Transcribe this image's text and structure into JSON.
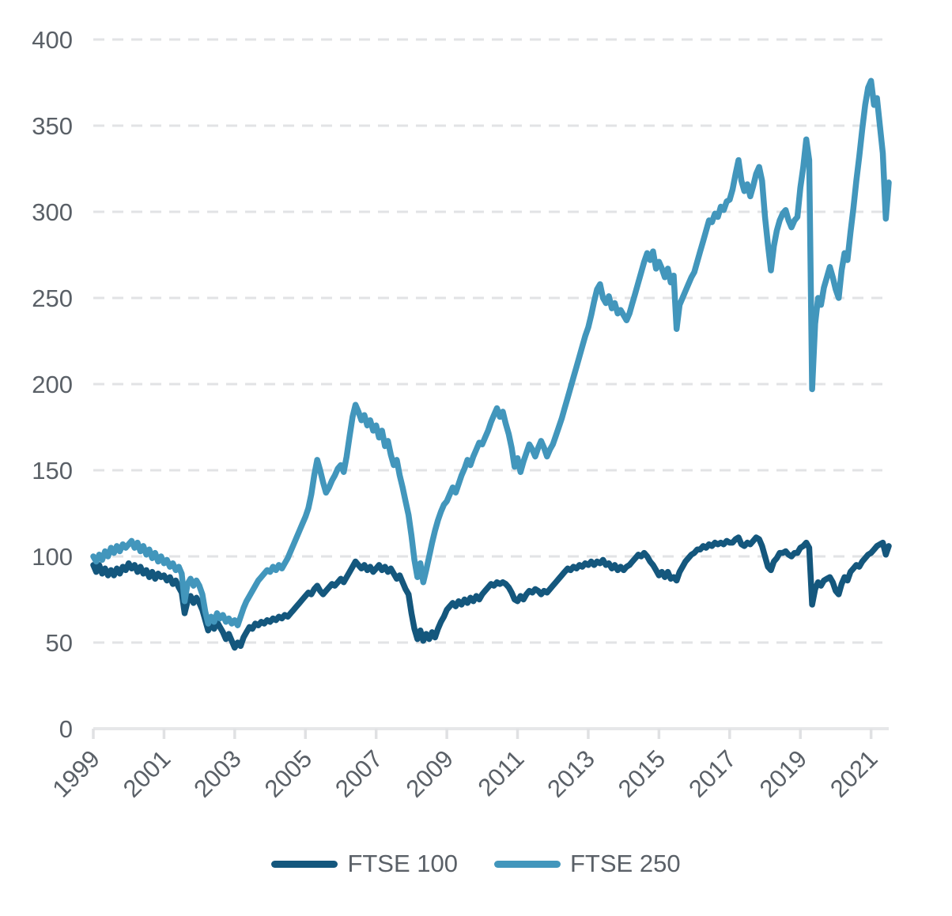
{
  "chart_data": {
    "type": "line",
    "title": "",
    "xlabel": "",
    "ylabel": "",
    "x0": 1999.0,
    "dx": 0.0833333,
    "xlim": [
      1999.0,
      2021.5
    ],
    "ylim": [
      0,
      400
    ],
    "yticks": [
      0,
      50,
      100,
      150,
      200,
      250,
      300,
      350,
      400
    ],
    "xticks": [
      1999,
      2001,
      2003,
      2005,
      2007,
      2009,
      2011,
      2013,
      2015,
      2017,
      2019,
      2021
    ],
    "grid": "horizontal-dashed",
    "legend_position": "bottom-center",
    "series": [
      {
        "name": "FTSE 100",
        "color": "#14577D",
        "values": [
          95,
          91,
          95,
          90,
          93,
          89,
          92,
          89,
          93,
          90,
          94,
          92,
          96,
          93,
          95,
          91,
          94,
          90,
          92,
          88,
          91,
          87,
          90,
          88,
          89,
          86,
          88,
          84,
          86,
          82,
          79,
          67,
          74,
          77,
          73,
          76,
          73,
          69,
          63,
          57,
          61,
          58,
          62,
          59,
          56,
          52,
          55,
          51,
          47,
          50,
          48,
          53,
          56,
          59,
          58,
          61,
          60,
          62,
          61,
          63,
          62,
          64,
          63,
          65,
          64,
          66,
          65,
          67,
          69,
          71,
          73,
          75,
          77,
          79,
          78,
          81,
          83,
          80,
          78,
          80,
          82,
          84,
          83,
          85,
          87,
          85,
          88,
          91,
          94,
          97,
          95,
          93,
          95,
          92,
          94,
          91,
          93,
          95,
          92,
          94,
          91,
          93,
          90,
          87,
          89,
          85,
          81,
          78,
          67,
          58,
          52,
          57,
          51,
          55,
          52,
          56,
          53,
          58,
          62,
          65,
          69,
          71,
          73,
          71,
          74,
          72,
          75,
          73,
          76,
          74,
          77,
          75,
          78,
          80,
          82,
          84,
          83,
          85,
          84,
          85,
          84,
          82,
          79,
          75,
          74,
          77,
          75,
          78,
          80,
          79,
          81,
          80,
          78,
          80,
          79,
          81,
          83,
          85,
          87,
          89,
          91,
          93,
          92,
          94,
          93,
          95,
          94,
          96,
          95,
          97,
          95,
          97,
          96,
          98,
          95,
          96,
          93,
          95,
          92,
          94,
          92,
          94,
          95,
          97,
          99,
          101,
          100,
          102,
          100,
          97,
          95,
          92,
          89,
          91,
          88,
          91,
          87,
          88,
          86,
          91,
          94,
          97,
          99,
          101,
          102,
          104,
          104,
          106,
          105,
          107,
          106,
          108,
          107,
          108,
          107,
          109,
          108,
          108,
          110,
          111,
          107,
          106,
          108,
          107,
          109,
          111,
          110,
          106,
          100,
          94,
          92,
          97,
          99,
          102,
          102,
          103,
          101,
          100,
          102,
          102,
          105,
          106,
          108,
          105,
          72,
          81,
          85,
          83,
          86,
          87,
          88,
          85,
          80,
          78,
          84,
          88,
          86,
          91,
          93,
          95,
          94,
          97,
          99,
          101,
          102,
          104,
          106,
          107,
          108,
          101,
          106
        ]
      },
      {
        "name": "FTSE 250",
        "color": "#4296BC",
        "values": [
          100,
          97,
          101,
          98,
          103,
          100,
          105,
          102,
          106,
          103,
          107,
          105,
          107,
          109,
          105,
          108,
          103,
          106,
          101,
          104,
          99,
          102,
          97,
          100,
          96,
          98,
          94,
          96,
          92,
          94,
          90,
          74,
          84,
          87,
          83,
          86,
          83,
          78,
          68,
          61,
          65,
          62,
          67,
          64,
          66,
          62,
          64,
          61,
          63,
          60,
          65,
          70,
          74,
          77,
          80,
          83,
          86,
          88,
          90,
          92,
          91,
          94,
          92,
          95,
          93,
          96,
          99,
          103,
          107,
          111,
          115,
          119,
          123,
          128,
          136,
          147,
          156,
          150,
          143,
          137,
          140,
          144,
          147,
          151,
          153,
          149,
          158,
          170,
          181,
          188,
          184,
          179,
          182,
          176,
          179,
          173,
          176,
          169,
          173,
          164,
          167,
          159,
          153,
          156,
          147,
          140,
          132,
          124,
          112,
          98,
          88,
          96,
          85,
          92,
          100,
          108,
          115,
          121,
          126,
          130,
          132,
          136,
          140,
          137,
          142,
          147,
          151,
          156,
          153,
          158,
          162,
          166,
          165,
          169,
          173,
          178,
          182,
          186,
          181,
          184,
          177,
          171,
          163,
          152,
          157,
          149,
          155,
          160,
          165,
          162,
          158,
          163,
          167,
          163,
          158,
          162,
          165,
          170,
          175,
          180,
          186,
          192,
          198,
          204,
          210,
          216,
          222,
          228,
          233,
          240,
          248,
          255,
          258,
          250,
          247,
          251,
          244,
          247,
          241,
          243,
          240,
          237,
          241,
          247,
          253,
          259,
          265,
          271,
          276,
          272,
          277,
          267,
          271,
          267,
          262,
          267,
          259,
          263,
          232,
          246,
          250,
          254,
          258,
          262,
          265,
          271,
          277,
          283,
          289,
          295,
          294,
          299,
          297,
          303,
          301,
          306,
          307,
          313,
          322,
          330,
          318,
          312,
          316,
          309,
          315,
          322,
          326,
          318,
          297,
          281,
          266,
          280,
          289,
          295,
          299,
          301,
          295,
          291,
          295,
          297,
          314,
          326,
          342,
          330,
          197,
          235,
          250,
          246,
          256,
          262,
          268,
          262,
          255,
          250,
          266,
          276,
          272,
          288,
          302,
          318,
          332,
          348,
          362,
          372,
          376,
          362,
          366,
          350,
          334,
          296,
          317
        ]
      }
    ]
  },
  "colors": {
    "background": "#FFFFFF",
    "grid": "#E2E3E5",
    "axis": "#E6E7E9",
    "tick": "#E0E1E3",
    "label": "#5A6067",
    "ftse100": "#14577D",
    "ftse250": "#4296BC"
  }
}
